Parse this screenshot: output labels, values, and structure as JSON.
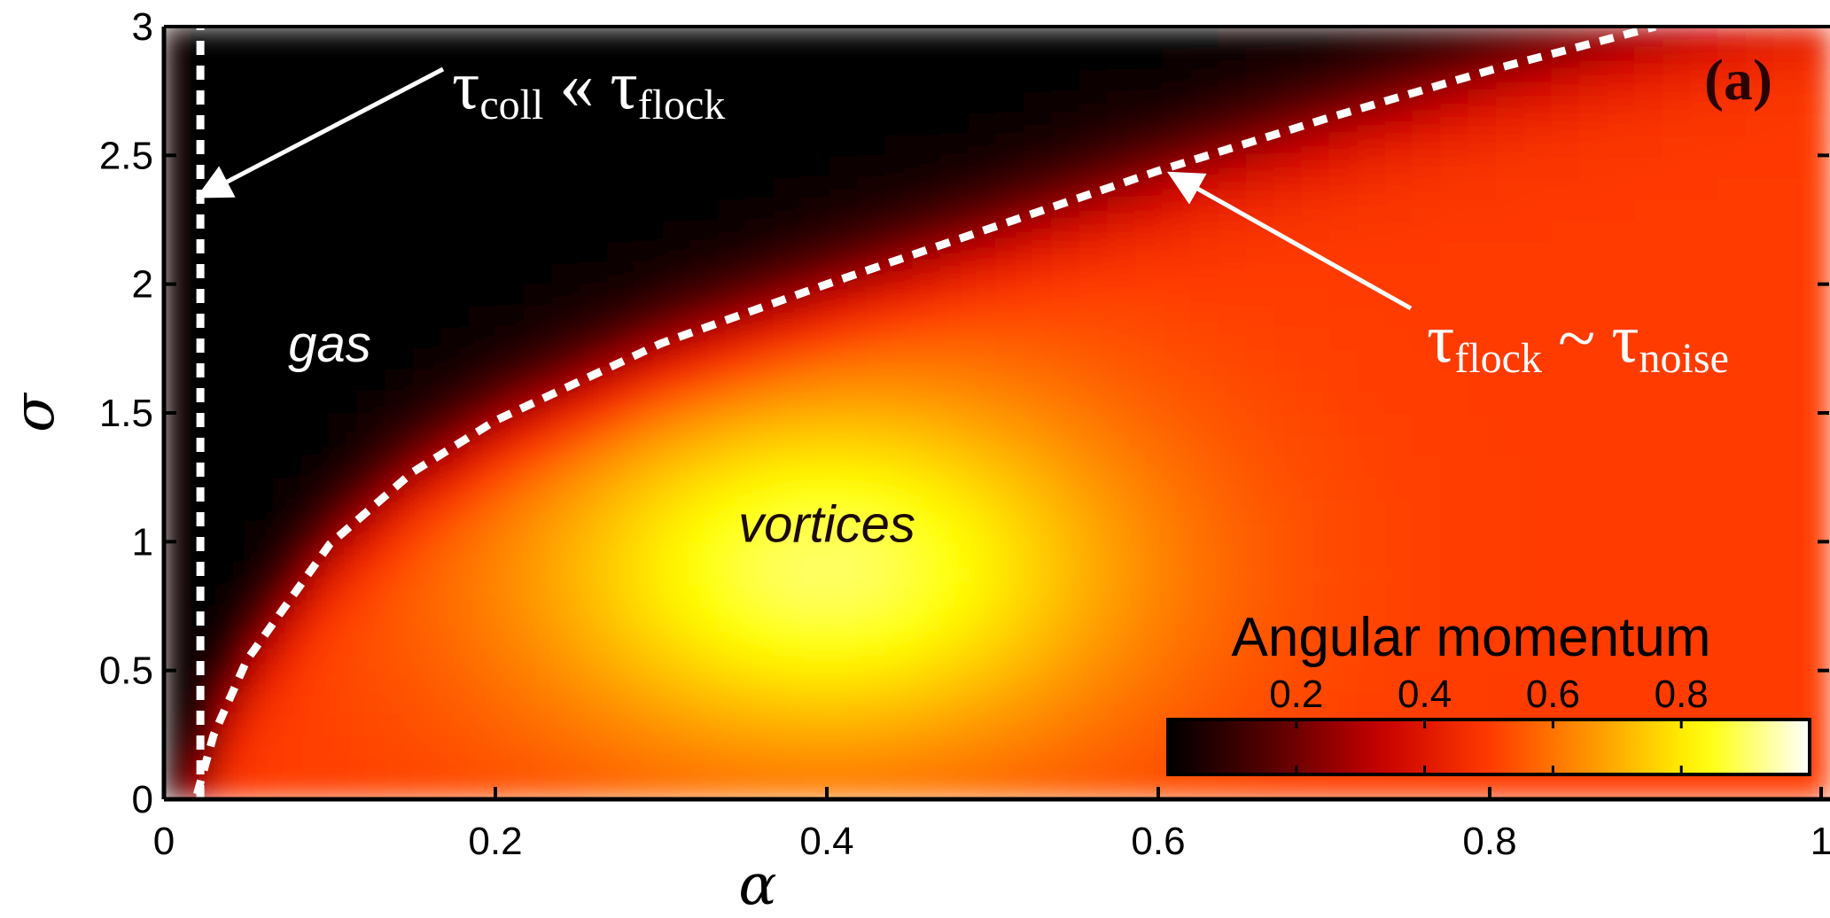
{
  "chart_data": {
    "type": "heatmap",
    "panel_label": "(a)",
    "xlabel": "α",
    "ylabel": "σ",
    "xlim": [
      0,
      1
    ],
    "ylim": [
      0,
      3
    ],
    "x_ticks": [
      "0",
      "0.2",
      "0.4",
      "0.6",
      "0.8",
      "1"
    ],
    "y_ticks": [
      "0",
      "0.5",
      "1",
      "1.5",
      "2",
      "2.5",
      "3"
    ],
    "x_tick_values": [
      0,
      0.2,
      0.4,
      0.6,
      0.8,
      1.0
    ],
    "y_tick_values": [
      0,
      0.5,
      1,
      1.5,
      2,
      2.5,
      3
    ],
    "colorbar": {
      "title": "Angular momentum",
      "range": [
        0,
        1
      ],
      "ticks": [
        "0.2",
        "0.4",
        "0.6",
        "0.8"
      ],
      "tick_values": [
        0.2,
        0.4,
        0.6,
        0.8
      ],
      "placement": "bottom-right",
      "colors": [
        "#000000",
        "#5a0000",
        "#c80000",
        "#ff3a00",
        "#ff9a00",
        "#ffff00",
        "#ffffff"
      ]
    },
    "regions": [
      {
        "label": "gas",
        "x": 0.1,
        "y": 1.7
      },
      {
        "label": "vortices",
        "x": 0.4,
        "y": 1.0
      }
    ],
    "boundaries": [
      {
        "name": "vertical",
        "style": "dashed",
        "color": "#ffffff",
        "x": [
          0.022,
          0.022
        ],
        "y": [
          0,
          3
        ],
        "annotation": {
          "main": "τ",
          "sub1": "coll",
          "relation": "«",
          "main2": "τ",
          "sub2": "flock"
        },
        "arrow_to": {
          "x": 0.024,
          "y": 2.35
        }
      },
      {
        "name": "curve",
        "style": "dashed",
        "color": "#ffffff",
        "x": [
          0.02,
          0.03,
          0.05,
          0.1,
          0.15,
          0.2,
          0.3,
          0.4,
          0.5,
          0.6,
          0.7,
          0.8,
          0.9
        ],
        "y": [
          0.02,
          0.25,
          0.54,
          0.99,
          1.27,
          1.47,
          1.77,
          2.0,
          2.22,
          2.44,
          2.64,
          2.83,
          3.0
        ],
        "annotation": {
          "main": "τ",
          "sub1": "flock",
          "relation": "~",
          "main2": "τ",
          "sub2": "noise"
        },
        "arrow_to": {
          "x": 0.61,
          "y": 2.42
        }
      }
    ],
    "color_field": {
      "description_level": "peak near alpha 0.4, sigma 0.9; zero for large sigma above curve",
      "peak": {
        "x": 0.4,
        "y": 0.9,
        "value": 0.9
      },
      "background_value": 0.5
    }
  }
}
